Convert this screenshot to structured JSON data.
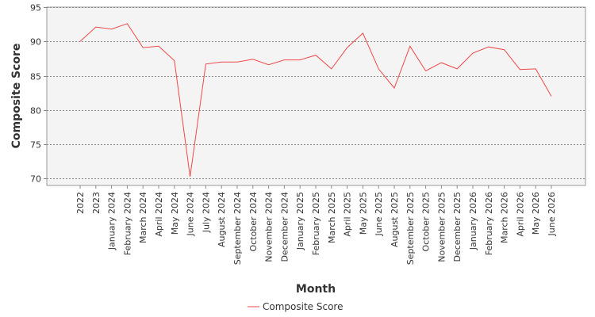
{
  "chart_data": {
    "type": "line",
    "title": "",
    "xlabel": "Month",
    "ylabel": "Composite Score",
    "ylim": [
      69,
      95
    ],
    "yticks": [
      70,
      75,
      80,
      85,
      90,
      95
    ],
    "grid": "horizontal dashed",
    "legend_position": "bottom-center",
    "categories": [
      "2022",
      "2023",
      "January 2024",
      "February 2024",
      "March 2024",
      "April 2024",
      "May 2024",
      "June 2024",
      "July 2024",
      "August 2024",
      "September 2024",
      "October 2024",
      "November 2024",
      "December 2024",
      "January 2025",
      "February 2025",
      "March 2025",
      "April 2025",
      "May 2025",
      "June 2025",
      "August 2025",
      "September 2025",
      "October 2025",
      "November 2025",
      "December 2025",
      "January 2026",
      "February 2026",
      "March 2026",
      "April 2026",
      "May 2026",
      "June 2026"
    ],
    "series": [
      {
        "name": "Composite Score",
        "color": "#f04848",
        "values": [
          90.0,
          92.1,
          91.8,
          92.6,
          89.1,
          89.3,
          87.2,
          70.3,
          86.7,
          87.0,
          87.0,
          87.4,
          86.6,
          87.3,
          87.3,
          88.0,
          86.0,
          89.1,
          91.2,
          86.0,
          83.2,
          89.3,
          85.7,
          86.9,
          86.0,
          88.3,
          89.2,
          88.8,
          85.9,
          86.0,
          82.0
        ]
      }
    ]
  }
}
